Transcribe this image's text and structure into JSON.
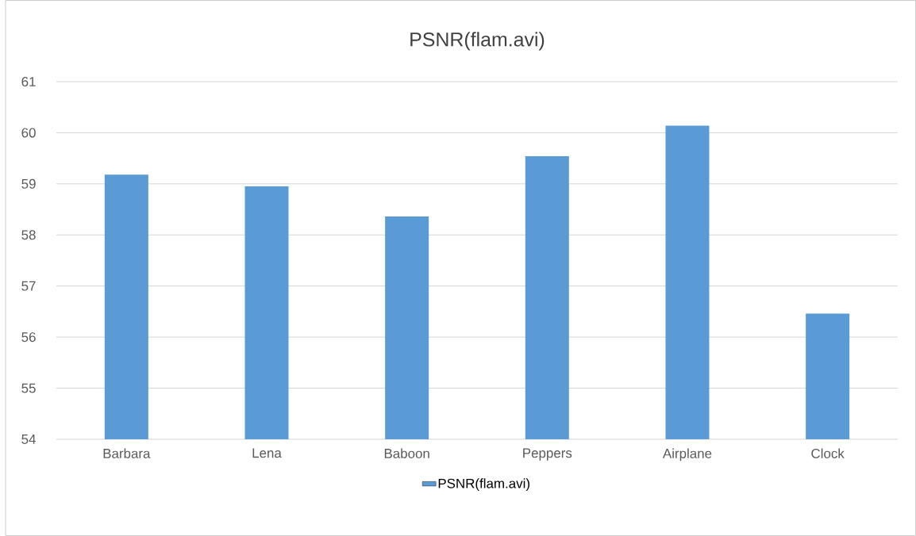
{
  "chart_data": {
    "type": "bar",
    "title": "PSNR(flam.avi)",
    "categories": [
      "Barbara",
      "Lena",
      "Baboon",
      "Peppers",
      "Airplane",
      "Clock"
    ],
    "series": [
      {
        "name": "PSNR(flam.avi)",
        "color": "#5b9bd5",
        "values": [
          59.18,
          58.95,
          58.36,
          59.54,
          60.14,
          56.46
        ]
      }
    ],
    "ylim": [
      54,
      61
    ],
    "yticks": [
      54,
      55,
      56,
      57,
      58,
      59,
      60,
      61
    ],
    "grid": "y",
    "legend": "bottom"
  }
}
